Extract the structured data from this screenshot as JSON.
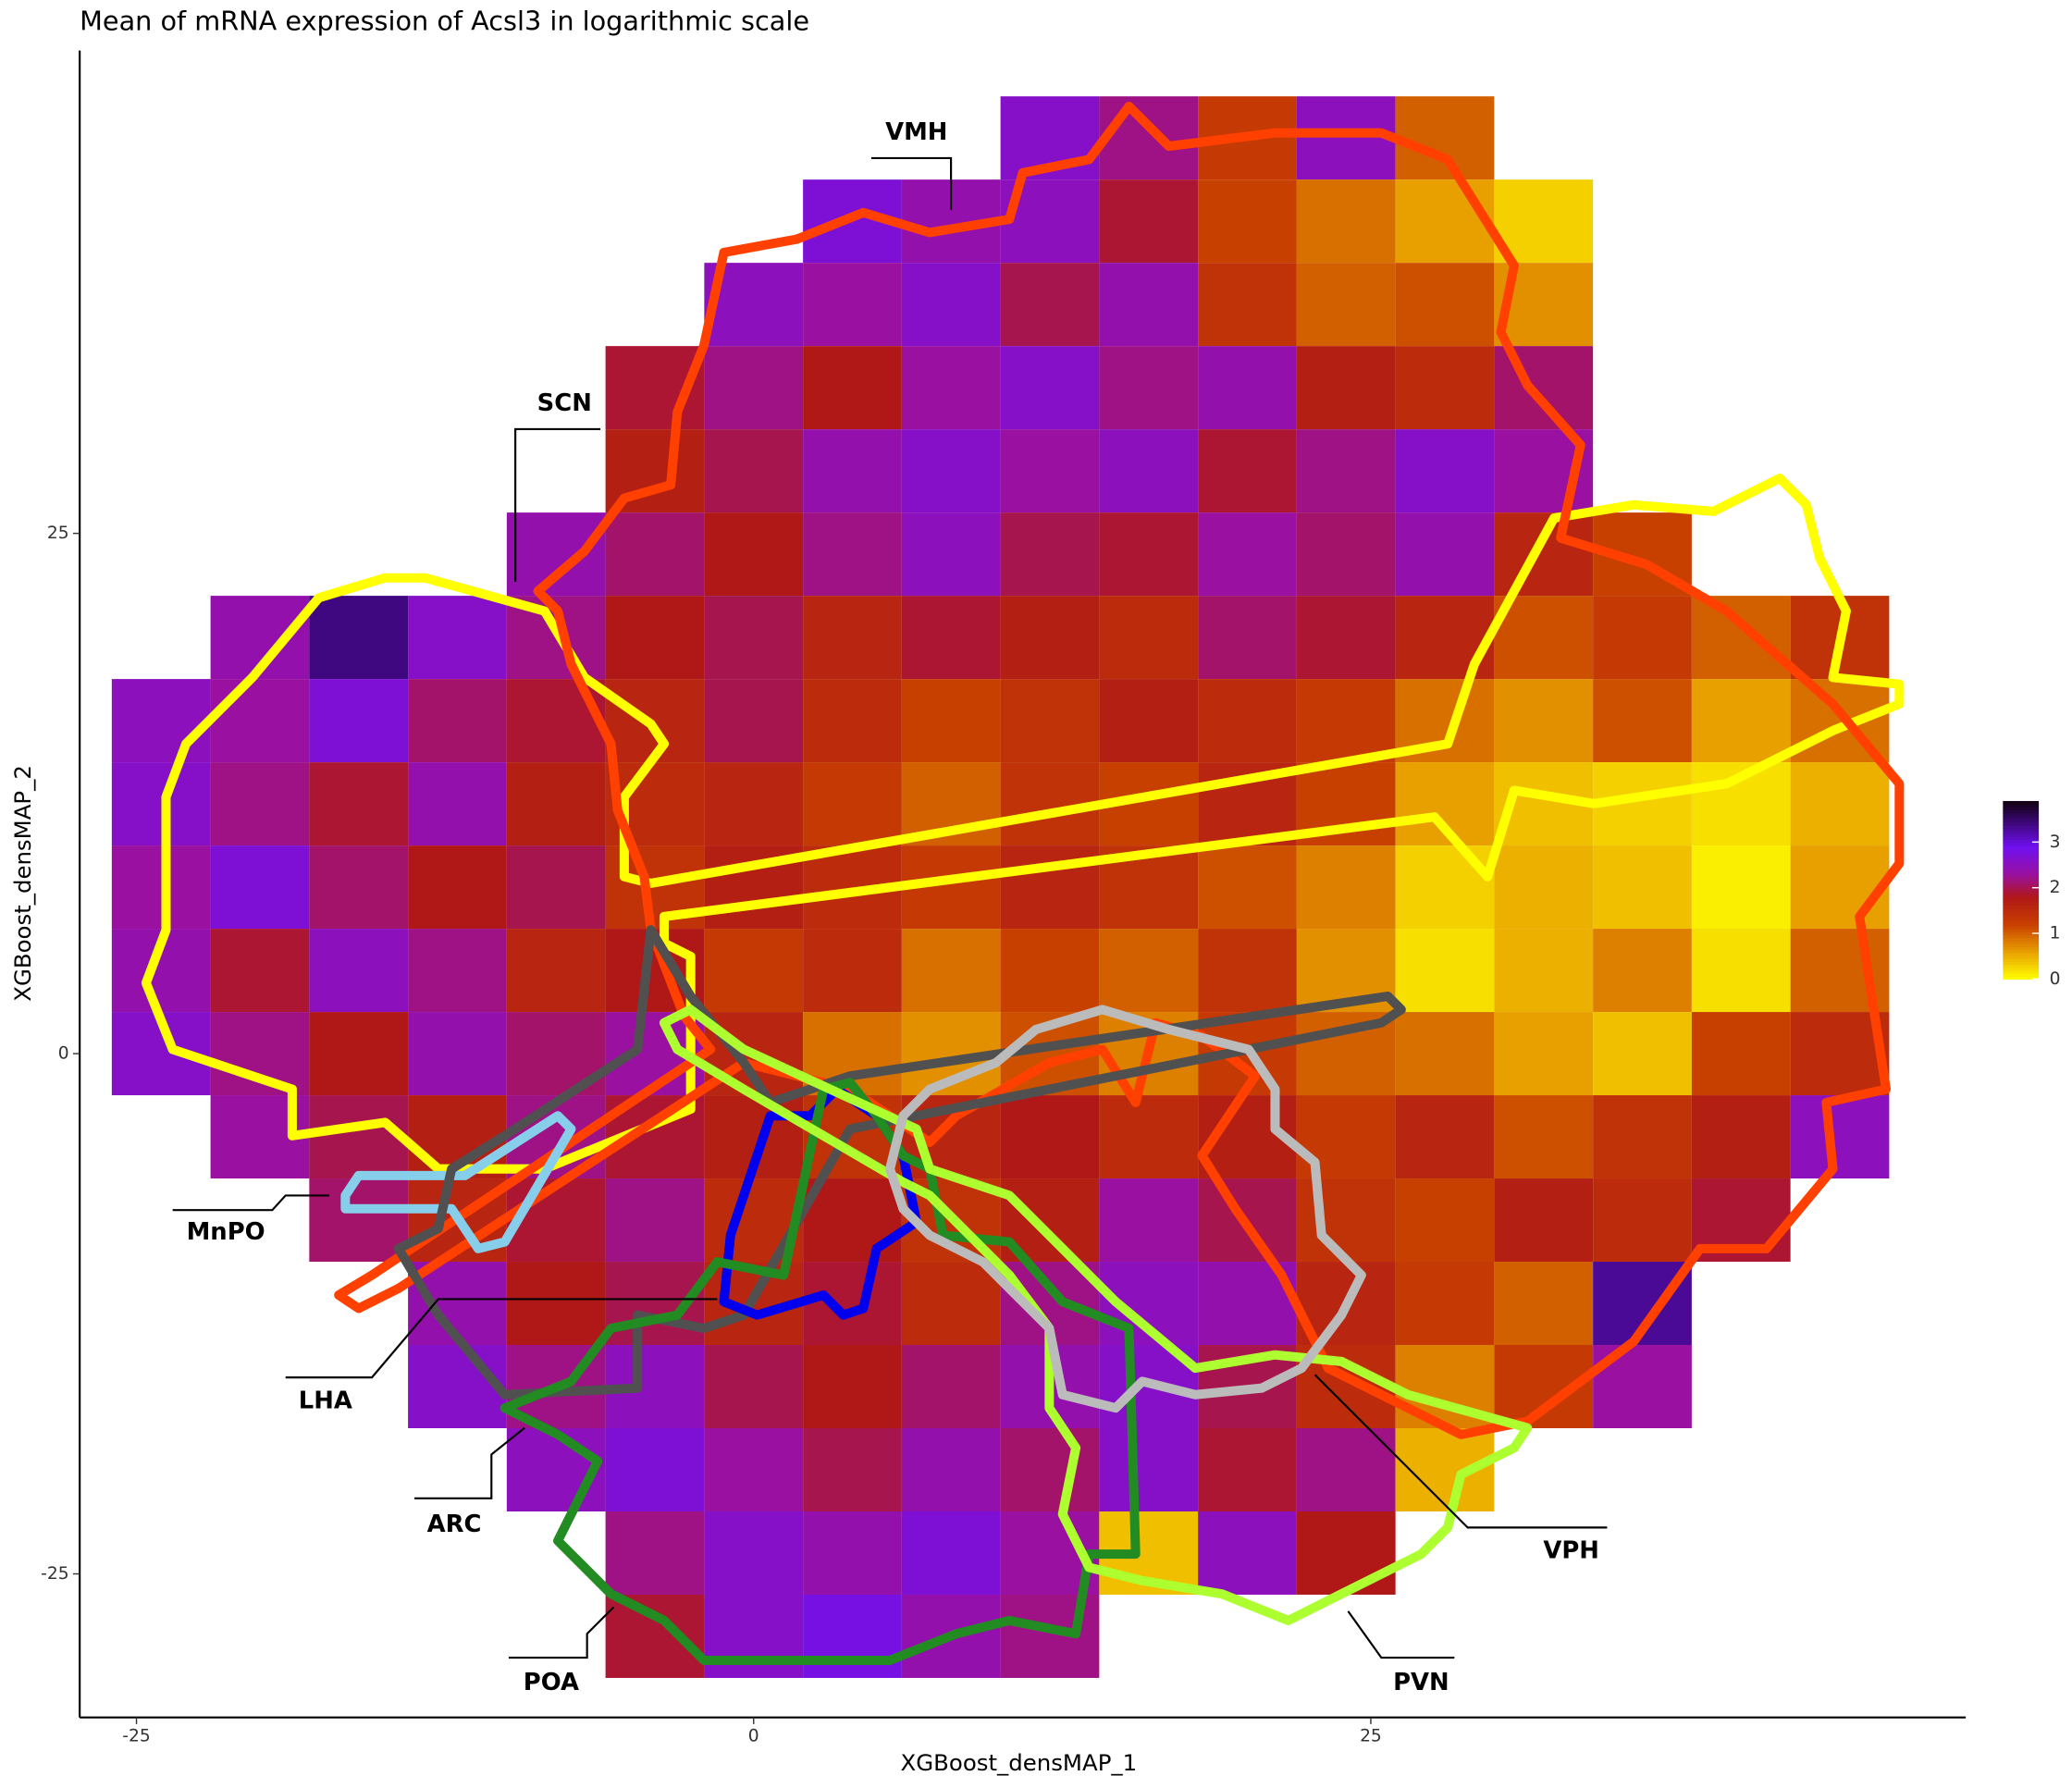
{
  "chart_data": {
    "type": "hexbin",
    "title": "Mean of mRNA expression of Acsl3 in logarithmic scale",
    "x_label": "XGBoost_densMAP_1",
    "y_label": "XGBoost_densMAP_2",
    "xlim": [
      -27.3,
      49.1
    ],
    "ylim": [
      -31.9,
      48.2
    ],
    "xticks": [
      -25,
      0,
      25
    ],
    "yticks": [
      -25,
      0,
      25
    ],
    "x": [
      -24,
      -20,
      -16,
      -12,
      -8,
      -4,
      0,
      4,
      8,
      12,
      16,
      20,
      24,
      28,
      32,
      36,
      40,
      44
    ],
    "y": [
      44,
      40,
      36,
      32,
      28,
      24,
      20,
      16,
      12,
      8,
      4,
      0,
      -4,
      -8,
      -12,
      -16,
      -20,
      -24,
      -28
    ],
    "values": [
      [
        null,
        null,
        null,
        null,
        null,
        null,
        null,
        null,
        null,
        2.6,
        2.2,
        1.3,
        2.5,
        1.0,
        null,
        null,
        null,
        null
      ],
      [
        null,
        null,
        null,
        null,
        null,
        null,
        null,
        2.7,
        2.4,
        2.5,
        1.9,
        1.2,
        0.9,
        0.6,
        0.3,
        null,
        null,
        null
      ],
      [
        null,
        null,
        null,
        null,
        null,
        null,
        2.5,
        2.3,
        2.6,
        2.0,
        2.4,
        1.4,
        1.0,
        1.1,
        0.7,
        null,
        null,
        null
      ],
      [
        null,
        null,
        null,
        null,
        null,
        1.9,
        2.2,
        1.8,
        2.3,
        2.6,
        2.2,
        2.4,
        1.7,
        1.5,
        2.1,
        null,
        null,
        null
      ],
      [
        null,
        null,
        null,
        null,
        null,
        1.7,
        2.0,
        2.4,
        2.6,
        2.3,
        2.5,
        1.9,
        2.2,
        2.6,
        2.3,
        null,
        null,
        null
      ],
      [
        null,
        null,
        null,
        null,
        2.4,
        2.1,
        1.8,
        2.2,
        2.5,
        2.0,
        1.9,
        2.3,
        2.1,
        2.4,
        1.6,
        1.2,
        null,
        null
      ],
      [
        null,
        2.4,
        3.4,
        2.6,
        2.2,
        1.8,
        2.0,
        1.6,
        1.9,
        1.7,
        1.5,
        2.1,
        1.9,
        1.6,
        1.1,
        1.3,
        1.0,
        1.4
      ],
      [
        2.5,
        2.3,
        2.7,
        2.1,
        1.9,
        1.6,
        2.0,
        1.5,
        1.2,
        1.4,
        1.7,
        1.5,
        1.3,
        0.9,
        0.7,
        1.1,
        0.6,
        0.9
      ],
      [
        2.6,
        2.2,
        1.9,
        2.4,
        1.7,
        1.5,
        1.6,
        1.3,
        1.0,
        1.4,
        1.2,
        1.6,
        1.2,
        0.6,
        0.4,
        0.3,
        0.2,
        0.5
      ],
      [
        2.3,
        2.7,
        2.1,
        1.8,
        2.0,
        1.4,
        1.7,
        1.5,
        1.3,
        1.6,
        1.4,
        1.1,
        0.8,
        0.3,
        0.5,
        0.4,
        0.1,
        0.6
      ],
      [
        2.4,
        1.9,
        2.5,
        2.2,
        1.6,
        1.8,
        1.3,
        1.5,
        0.9,
        1.2,
        1.0,
        1.4,
        0.7,
        0.2,
        0.5,
        0.8,
        0.2,
        1.0
      ],
      [
        2.6,
        2.2,
        1.8,
        2.4,
        2.1,
        2.3,
        1.6,
        0.9,
        0.7,
        1.1,
        0.8,
        1.3,
        1.0,
        0.9,
        0.6,
        0.4,
        1.2,
        1.5
      ],
      [
        null,
        2.3,
        2.0,
        1.7,
        2.2,
        1.9,
        1.7,
        1.4,
        1.6,
        1.8,
        1.5,
        1.7,
        1.3,
        1.6,
        1.1,
        1.4,
        1.7,
        2.5
      ],
      [
        null,
        null,
        2.1,
        1.6,
        1.9,
        2.2,
        1.5,
        1.8,
        1.4,
        1.7,
        2.3,
        2.0,
        1.4,
        1.2,
        1.7,
        1.5,
        1.9,
        null
      ],
      [
        null,
        null,
        null,
        2.4,
        1.8,
        2.0,
        1.6,
        1.9,
        1.5,
        2.2,
        2.5,
        2.4,
        1.6,
        1.3,
        1.0,
        3.3,
        null,
        null
      ],
      [
        null,
        null,
        null,
        2.6,
        2.2,
        2.5,
        2.0,
        1.8,
        2.1,
        2.4,
        2.6,
        2.0,
        1.5,
        0.8,
        1.3,
        2.3,
        null,
        null
      ],
      [
        null,
        null,
        null,
        null,
        2.5,
        2.7,
        2.3,
        2.0,
        2.4,
        2.1,
        2.6,
        1.9,
        2.2,
        0.5,
        null,
        null,
        null,
        null
      ],
      [
        null,
        null,
        null,
        null,
        null,
        2.2,
        2.6,
        2.4,
        2.7,
        2.3,
        0.4,
        2.5,
        1.8,
        null,
        null,
        null,
        null,
        null
      ],
      [
        null,
        null,
        null,
        null,
        null,
        1.9,
        2.6,
        2.8,
        2.4,
        2.2,
        null,
        null,
        null,
        null,
        null,
        null,
        null,
        null
      ]
    ],
    "clim": [
      0,
      3.9
    ],
    "cticks": [
      0,
      1,
      2,
      3
    ],
    "colorscale": [
      {
        "value": 0,
        "color": "#ffff00"
      },
      {
        "value": 0.6,
        "color": "#e8a000"
      },
      {
        "value": 1.2,
        "color": "#c84000"
      },
      {
        "value": 1.8,
        "color": "#b01818"
      },
      {
        "value": 2.3,
        "color": "#9a10a0"
      },
      {
        "value": 2.9,
        "color": "#7010f0"
      },
      {
        "value": 3.9,
        "color": "#100010"
      }
    ],
    "annotations": [
      "VMH",
      "SCN",
      "MnPO",
      "LHA",
      "ARC",
      "POA",
      "PVN",
      "VPH"
    ]
  }
}
